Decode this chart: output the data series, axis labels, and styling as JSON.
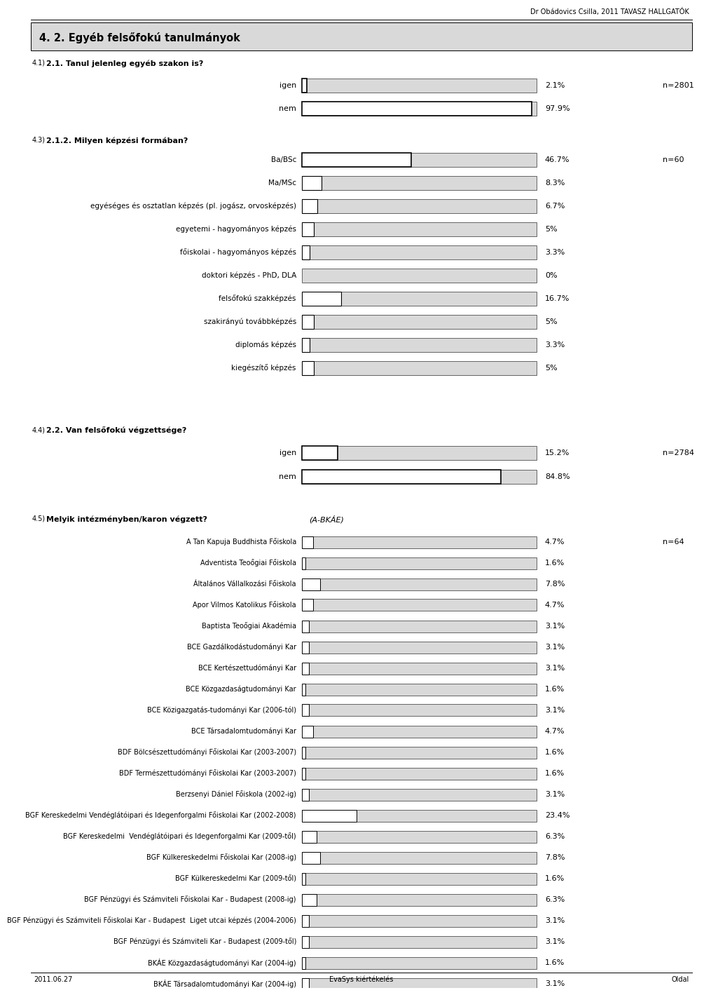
{
  "header_text": "Dr Obádovics Csilla, 2011 TAVASZ HALLGATÓK",
  "section_title": "4. 2. Egyéb felsőfokú tanulmányok",
  "footer_left": "2011.06.27",
  "footer_center": "EvaSys kiértékelés",
  "footer_right": "Oldal",
  "q41_sup": "4.1)",
  "q41_label": "2.1. Tanul jelenleg egyéb szakon is?",
  "q41_n": "n=2801",
  "q41_categories": [
    "igen",
    "nem"
  ],
  "q41_values": [
    2.1,
    97.9
  ],
  "q41_max": 100,
  "q43_sup": "4.3)",
  "q43_label": "2.1.2. Milyen képzési formában?",
  "q43_n": "n=60",
  "q43_categories": [
    "Ba/BSc",
    "Ma/MSc",
    "egyéséges és osztatlan képzés (pl. jogász, orvosképzés)",
    "egyetemi - hagyományos képzés",
    "főiskolai - hagyományos képzés",
    "doktori képzés - PhD, DLA",
    "felsőfokú szakképzés",
    "szakirányú továbbképzés",
    "diplomás képzés",
    "kiegészítő képzés"
  ],
  "q43_values": [
    46.7,
    8.3,
    6.7,
    5.0,
    3.3,
    0.0,
    16.7,
    5.0,
    3.3,
    5.0
  ],
  "q43_max": 100,
  "q44_sup": "4.4)",
  "q44_label": "2.2. Van felsőfokú végzettsége?",
  "q44_n": "n=2784",
  "q44_categories": [
    "igen",
    "nem"
  ],
  "q44_values": [
    15.2,
    84.8
  ],
  "q44_max": 100,
  "q45_sup": "4.5)",
  "q45_label": "Melyik intézményben/karon végzett?",
  "q45_sublabel": "(A-BKÁE)",
  "q45_n": "n=64",
  "q45_categories": [
    "A Tan Kapuja Buddhista Főiskola",
    "Adventista Teoőgiai Főiskola",
    "Általános Vállalkozási Főiskola",
    "Apor Vilmos Katolikus Főiskola",
    "Baptista Teoőgiai Akadémia",
    "BCE Gazdálkodástudományi Kar",
    "BCE Kertészettudómányi Kar",
    "BCE Közgazdaságtudományi Kar",
    "BCE Közigazgatás-tudományi Kar (2006-tól)",
    "BCE Társadalomtudományi Kar",
    "BDF Bölcsészettudómányi Főiskolai Kar (2003-2007)",
    "BDF Természettudómányi Főiskolai Kar (2003-2007)",
    "Berzsenyi Dániel Főiskola (2002-ig)",
    "BGF Kereskedelmi Vendéglátóipari és Idegenforgalmi Főiskolai Kar (2002-2008)",
    "BGF Kereskedelmi  Vendéglátóipari és Idegenforgalmi Kar (2009-től)",
    "BGF Külkereskedelmi Főiskolai Kar (2008-ig)",
    "BGF Külkereskedelmi Kar (2009-től)",
    "BGF Pénzügyi és Számviteli Főiskolai Kar - Budapest (2008-ig)",
    "BGF Pénzügyi és Számviteli Főiskolai Kar - Budapest  Liget utcai képzés (2004-2006)",
    "BGF Pénzügyi és Számviteli Kar - Budapest (2009-től)",
    "BKÁE Közgazdaságtudományi Kar (2004-ig)",
    "BKÁE Társadalomtudományi Kar (2004-ig)"
  ],
  "q45_values": [
    4.7,
    1.6,
    7.8,
    4.7,
    3.1,
    3.1,
    3.1,
    1.6,
    3.1,
    4.7,
    1.6,
    1.6,
    3.1,
    23.4,
    6.3,
    7.8,
    1.6,
    6.3,
    3.1,
    3.1,
    1.6,
    3.1
  ],
  "q45_max": 100,
  "bar_bg_color": "#d9d9d9",
  "bar_fill_color": "#ffffff",
  "bar_border_color": "#000000",
  "section_bg_color": "#d9d9d9",
  "text_color": "#000000"
}
